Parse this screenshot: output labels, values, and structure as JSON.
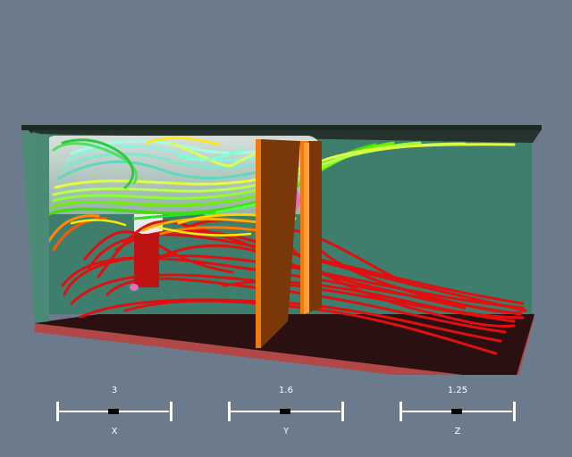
{
  "scene": {
    "background": "#6b7b8c",
    "wall_color": "#3f7d6c",
    "floor_color": "#b04848",
    "partition_color": "#e06a10",
    "streamline_colors": [
      "#ff0000",
      "#ff7f00",
      "#ffff00",
      "#7fff00",
      "#7fffd4"
    ]
  },
  "scale_bars": [
    {
      "axis": "X",
      "value": "3"
    },
    {
      "axis": "Y",
      "value": "1.6"
    },
    {
      "axis": "Z",
      "value": "1.25"
    }
  ]
}
